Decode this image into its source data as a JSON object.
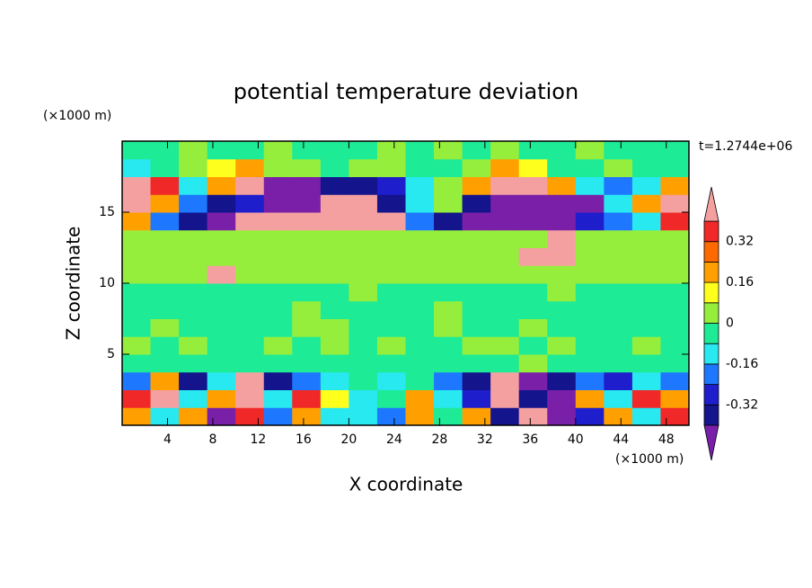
{
  "chart_data": {
    "type": "contourf",
    "title": "potential temperature deviation",
    "xlabel": "X coordinate",
    "ylabel": "Z coordinate",
    "xunit": "(×1000 m)",
    "yunit": "(×1000 m)",
    "annotation": "t=1.2744e+06",
    "xlim": [
      0,
      50
    ],
    "ylim": [
      0,
      20
    ],
    "xticks": [
      4,
      8,
      12,
      16,
      20,
      24,
      28,
      32,
      36,
      40,
      44,
      48
    ],
    "yticks": [
      5,
      10,
      15
    ],
    "xbins": [
      0,
      2.5,
      5,
      7.5,
      10,
      12.5,
      15,
      17.5,
      20,
      22.5,
      25,
      27.5,
      30,
      32.5,
      35,
      37.5,
      40,
      42.5,
      45,
      47.5,
      50
    ],
    "zbins": [
      0,
      1.25,
      2.5,
      3.75,
      5,
      6.25,
      7.5,
      8.75,
      10,
      11.25,
      12.5,
      13.75,
      15,
      16.25,
      17.5,
      18.75,
      20
    ],
    "levels": [
      -0.4,
      -0.32,
      -0.24,
      -0.16,
      -0.08,
      0,
      0.08,
      0.16,
      0.24,
      0.32,
      0.4
    ],
    "colors": [
      "#7a1fa8",
      "#14148c",
      "#1e1ecc",
      "#1e78ff",
      "#28e8f0",
      "#1eeb96",
      "#96ee3c",
      "#ffff1e",
      "#ffa000",
      "#ff6a00",
      "#f02828",
      "#f5a0a0"
    ],
    "colorbar_ticks": [
      -0.32,
      -0.16,
      0,
      0.16,
      0.32
    ],
    "z": [
      [
        0.2,
        -0.12,
        0.2,
        -0.45,
        0.36,
        -0.2,
        0.2,
        -0.12,
        -0.12,
        -0.2,
        0.2,
        -0.04,
        0.2,
        -0.36,
        0.45,
        -0.45,
        -0.28,
        0.2,
        -0.12,
        0.36
      ],
      [
        0.36,
        0.45,
        -0.12,
        0.2,
        0.45,
        -0.12,
        0.36,
        0.12,
        -0.12,
        -0.04,
        0.2,
        -0.12,
        -0.28,
        0.45,
        -0.36,
        -0.45,
        0.2,
        -0.12,
        0.36,
        0.2
      ],
      [
        -0.2,
        0.2,
        -0.36,
        -0.12,
        0.45,
        -0.36,
        -0.2,
        -0.12,
        -0.04,
        -0.12,
        -0.04,
        -0.2,
        -0.36,
        0.45,
        -0.45,
        -0.36,
        -0.2,
        -0.28,
        -0.12,
        -0.2
      ],
      [
        -0.04,
        -0.04,
        -0.04,
        -0.04,
        -0.04,
        -0.04,
        -0.04,
        -0.04,
        -0.04,
        -0.04,
        -0.04,
        -0.04,
        -0.04,
        -0.04,
        0.04,
        -0.04,
        -0.04,
        -0.04,
        -0.04,
        -0.04
      ],
      [
        0.04,
        -0.04,
        0.04,
        -0.04,
        -0.04,
        0.04,
        -0.04,
        0.04,
        -0.04,
        0.04,
        -0.04,
        -0.04,
        0.04,
        0.04,
        -0.04,
        0.04,
        -0.04,
        -0.04,
        0.04,
        -0.04
      ],
      [
        -0.04,
        0.04,
        -0.04,
        -0.04,
        -0.04,
        -0.04,
        0.04,
        0.04,
        -0.04,
        -0.04,
        -0.04,
        0.04,
        -0.04,
        -0.04,
        0.04,
        -0.04,
        -0.04,
        -0.04,
        -0.04,
        -0.04
      ],
      [
        -0.04,
        -0.04,
        -0.04,
        -0.04,
        -0.04,
        -0.04,
        0.04,
        -0.04,
        -0.04,
        -0.04,
        -0.04,
        0.04,
        -0.04,
        -0.04,
        -0.04,
        -0.04,
        -0.04,
        -0.04,
        -0.04,
        -0.04
      ],
      [
        -0.04,
        -0.04,
        -0.04,
        -0.04,
        -0.04,
        -0.04,
        -0.04,
        -0.04,
        0.04,
        -0.04,
        -0.04,
        -0.04,
        -0.04,
        -0.04,
        -0.04,
        0.04,
        -0.04,
        -0.04,
        -0.04,
        -0.04
      ],
      [
        0.04,
        0.04,
        0.04,
        0.45,
        0.04,
        0.04,
        0.04,
        0.04,
        0.04,
        0.04,
        0.04,
        0.04,
        0.04,
        0.04,
        0.04,
        0.04,
        0.04,
        0.04,
        0.04,
        0.04
      ],
      [
        0.04,
        0.04,
        0.04,
        0.04,
        0.04,
        0.04,
        0.04,
        0.04,
        0.04,
        0.04,
        0.04,
        0.04,
        0.04,
        0.04,
        0.45,
        0.45,
        0.04,
        0.04,
        0.04,
        0.04
      ],
      [
        0.04,
        0.04,
        0.04,
        0.04,
        0.04,
        0.04,
        0.04,
        0.04,
        0.04,
        0.04,
        0.04,
        0.04,
        0.04,
        0.04,
        0.04,
        0.45,
        0.04,
        0.04,
        0.04,
        0.04
      ],
      [
        0.2,
        -0.2,
        -0.36,
        -0.45,
        0.45,
        0.45,
        0.45,
        0.45,
        0.45,
        0.45,
        -0.2,
        -0.36,
        -0.45,
        -0.45,
        -0.45,
        -0.45,
        -0.28,
        -0.2,
        -0.12,
        0.36
      ],
      [
        0.45,
        0.2,
        -0.2,
        -0.36,
        -0.28,
        -0.45,
        -0.45,
        0.45,
        0.45,
        -0.36,
        -0.12,
        0.04,
        -0.36,
        -0.45,
        -0.45,
        -0.45,
        -0.45,
        -0.12,
        0.2,
        0.45
      ],
      [
        0.45,
        0.36,
        -0.12,
        0.2,
        0.45,
        -0.45,
        -0.45,
        -0.36,
        -0.36,
        -0.28,
        -0.12,
        0.04,
        0.2,
        0.45,
        0.45,
        0.2,
        -0.12,
        -0.2,
        -0.12,
        0.2
      ],
      [
        -0.12,
        -0.04,
        0.04,
        0.12,
        0.2,
        0.04,
        0.04,
        -0.04,
        0.04,
        0.04,
        -0.04,
        -0.04,
        0.04,
        0.2,
        0.12,
        -0.04,
        -0.04,
        0.04,
        -0.04,
        -0.04
      ],
      [
        -0.04,
        -0.04,
        0.04,
        -0.04,
        -0.04,
        0.04,
        -0.04,
        -0.04,
        -0.04,
        0.04,
        -0.04,
        0.04,
        -0.04,
        0.04,
        -0.04,
        -0.04,
        0.04,
        -0.04,
        -0.04,
        -0.04
      ]
    ]
  }
}
